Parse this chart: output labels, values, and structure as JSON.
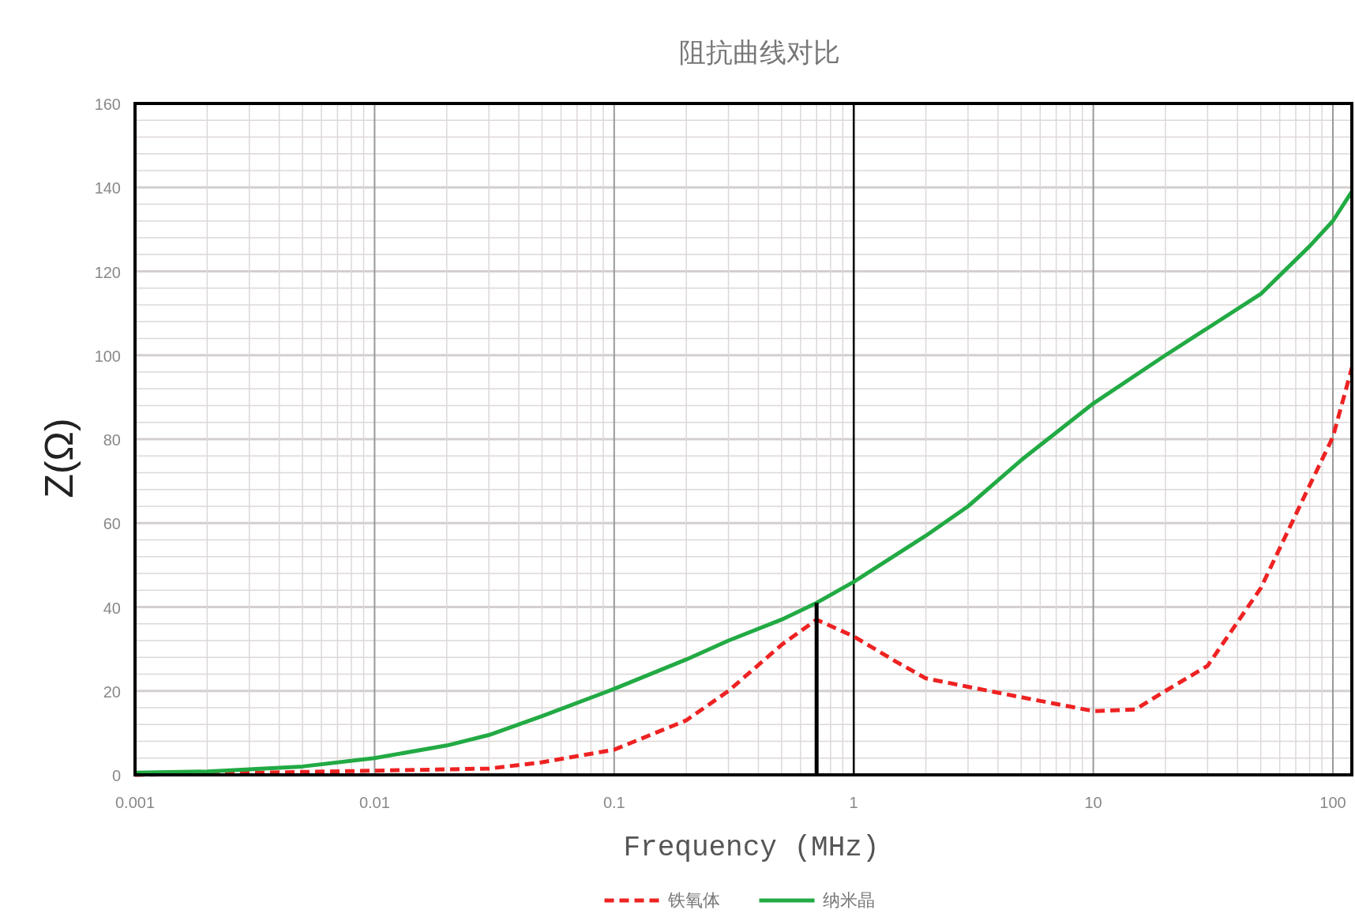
{
  "chart_data": {
    "type": "line",
    "title": "阻抗曲线对比",
    "xlabel": "Frequency (MHz)",
    "ylabel": "Z(Ω)",
    "log": "x",
    "grid": true,
    "legend": "bottom",
    "marker": "none",
    "xlim": [
      0.001,
      120
    ],
    "xticks": [
      0.001,
      0.01,
      0.1,
      1,
      10,
      100
    ],
    "ylim": [
      0,
      160
    ],
    "yticks": [
      0,
      20,
      40,
      60,
      80,
      100,
      120,
      140,
      160
    ],
    "ref_lines": [
      {
        "axis": "x",
        "value": 1,
        "color": "#000000"
      }
    ],
    "series": [
      {
        "name": "铁氧体",
        "color": "#ee2222",
        "line_style": "dashed",
        "x": [
          0.001,
          0.01,
          0.03,
          0.05,
          0.1,
          0.2,
          0.3,
          0.5,
          0.7,
          1,
          1.5,
          2,
          3,
          5,
          10,
          15,
          20,
          30,
          50,
          80,
          100,
          120
        ],
        "values": [
          0,
          1,
          1.5,
          3,
          6,
          13,
          20,
          31,
          37,
          33,
          27,
          23,
          21,
          18.5,
          15.2,
          15.6,
          20,
          26,
          44.5,
          69,
          80.5,
          97
        ]
      },
      {
        "name": "纳米晶",
        "color": "#22aa44",
        "line_style": "solid",
        "x": [
          0.001,
          0.002,
          0.005,
          0.01,
          0.02,
          0.03,
          0.05,
          0.1,
          0.2,
          0.3,
          0.5,
          0.7,
          1,
          2,
          3,
          5,
          10,
          20,
          50,
          80,
          100,
          120
        ],
        "values": [
          0.5,
          0.8,
          2,
          4,
          7,
          9.5,
          14,
          20.5,
          27.5,
          32,
          37,
          41,
          46,
          57,
          64,
          75,
          88.5,
          100,
          114.6,
          126,
          132,
          139
        ]
      },
      {
        "color": "#000000",
        "line_style": "solid",
        "x": [
          0.7,
          0.7
        ],
        "values": [
          0,
          41
        ]
      }
    ]
  }
}
